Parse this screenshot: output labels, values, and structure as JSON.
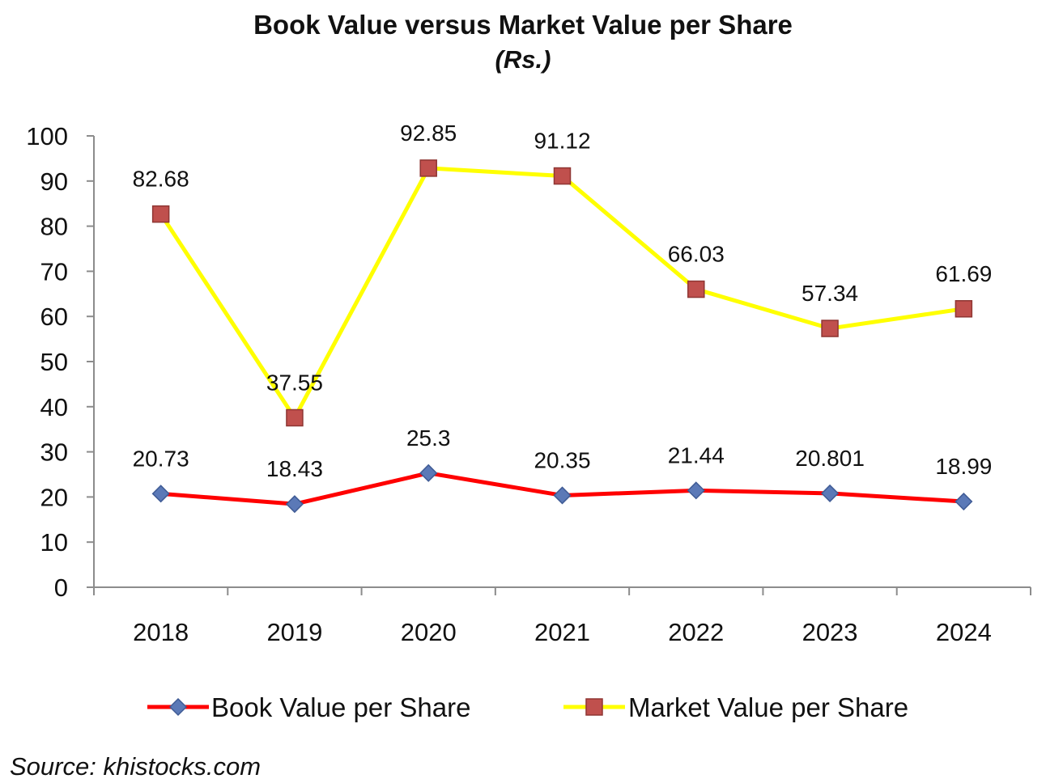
{
  "chart_data": {
    "type": "line",
    "title": "Book Value versus Market Value per Share",
    "subtitle": "(Rs.)",
    "categories": [
      "2018",
      "2019",
      "2020",
      "2021",
      "2022",
      "2023",
      "2024"
    ],
    "ylim": [
      0,
      100
    ],
    "yticks": [
      "0",
      "10",
      "20",
      "30",
      "40",
      "50",
      "60",
      "70",
      "80",
      "90",
      "100"
    ],
    "grid": false,
    "legend_position": "bottom",
    "series": [
      {
        "name": "Book Value per Share",
        "values": [
          20.73,
          18.43,
          25.3,
          20.35,
          21.44,
          20.801,
          18.99
        ],
        "labels": [
          "20.73",
          "18.43",
          "25.3",
          "20.35",
          "21.44",
          "20.801",
          "18.99"
        ],
        "line_color": "#ff0000",
        "marker": "diamond",
        "marker_color": "#5b79b7"
      },
      {
        "name": "Market Value per Share",
        "values": [
          82.68,
          37.55,
          92.85,
          91.12,
          66.03,
          57.34,
          61.69
        ],
        "labels": [
          "82.68",
          "37.55",
          "92.85",
          "91.12",
          "66.03",
          "57.34",
          "61.69"
        ],
        "line_color": "#ffff00",
        "marker": "square",
        "marker_color": "#c0504d"
      }
    ]
  },
  "source": "Source: khistocks.com"
}
